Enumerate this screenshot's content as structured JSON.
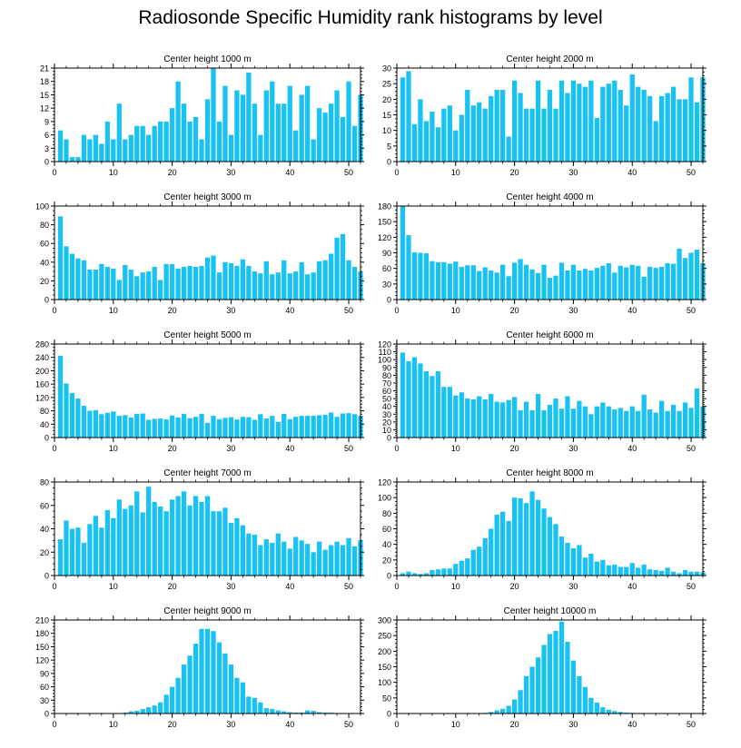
{
  "title": "Radiosonde Specific Humidity rank histograms by level",
  "colors": {
    "bar": "#18C2F2",
    "axis": "#000000",
    "background": "#ffffff"
  },
  "chart_data": [
    {
      "type": "bar",
      "title": "Center height 1000 m",
      "x_ticks": [
        0,
        10,
        20,
        30,
        40,
        50
      ],
      "xlim": [
        0,
        52
      ],
      "ylim": [
        0,
        21
      ],
      "y_ticks": [
        0,
        3,
        6,
        9,
        12,
        15,
        18,
        21
      ],
      "values": [
        7,
        5,
        1,
        1,
        6,
        5,
        6,
        4,
        9,
        5,
        13,
        5,
        6,
        8,
        8,
        6,
        8,
        9,
        9,
        12,
        18,
        13,
        9,
        10,
        5,
        14,
        21,
        9,
        17,
        6,
        16,
        15,
        20,
        13,
        6,
        16,
        18,
        13,
        13,
        17,
        7,
        15,
        17,
        5,
        12,
        11,
        13,
        16,
        10,
        18,
        8,
        15
      ]
    },
    {
      "type": "bar",
      "title": "Center height 2000 m",
      "x_ticks": [
        0,
        10,
        20,
        30,
        40,
        50
      ],
      "xlim": [
        0,
        52
      ],
      "ylim": [
        0,
        30
      ],
      "y_ticks": [
        0,
        5,
        10,
        15,
        20,
        25,
        30
      ],
      "values": [
        27,
        29,
        12,
        20,
        13,
        16,
        11,
        17,
        18,
        10,
        15,
        23,
        18,
        19,
        17,
        21,
        23,
        23,
        8,
        26,
        22,
        17,
        17,
        26,
        17,
        23,
        17,
        26,
        22,
        26,
        25,
        24,
        26,
        14,
        24,
        25,
        26,
        23,
        18,
        28,
        24,
        23,
        21,
        13,
        21,
        22,
        24,
        20,
        20,
        27,
        19,
        27
      ]
    },
    {
      "type": "bar",
      "title": "Center height 3000 m",
      "x_ticks": [
        0,
        10,
        20,
        30,
        40,
        50
      ],
      "xlim": [
        0,
        52
      ],
      "ylim": [
        0,
        100
      ],
      "y_ticks": [
        0,
        20,
        40,
        60,
        80,
        100
      ],
      "values": [
        89,
        57,
        49,
        44,
        42,
        32,
        32,
        38,
        35,
        33,
        21,
        37,
        32,
        25,
        29,
        30,
        35,
        21,
        38,
        38,
        33,
        35,
        36,
        35,
        36,
        45,
        47,
        29,
        40,
        39,
        36,
        43,
        36,
        30,
        28,
        41,
        27,
        29,
        42,
        28,
        30,
        40,
        27,
        29,
        41,
        42,
        49,
        66,
        70,
        42,
        35,
        30
      ]
    },
    {
      "type": "bar",
      "title": "Center height 4000 m",
      "x_ticks": [
        0,
        10,
        20,
        30,
        40,
        50
      ],
      "xlim": [
        0,
        52
      ],
      "ylim": [
        0,
        180
      ],
      "y_ticks": [
        0,
        30,
        60,
        90,
        120,
        150,
        180
      ],
      "values": [
        180,
        124,
        91,
        90,
        89,
        74,
        72,
        72,
        69,
        73,
        63,
        66,
        66,
        55,
        62,
        56,
        52,
        67,
        45,
        71,
        78,
        67,
        58,
        51,
        67,
        42,
        46,
        71,
        56,
        67,
        56,
        59,
        56,
        61,
        65,
        70,
        52,
        65,
        62,
        67,
        65,
        44,
        63,
        61,
        63,
        70,
        69,
        98,
        80,
        90,
        96,
        70
      ]
    },
    {
      "type": "bar",
      "title": "Center height 5000 m",
      "x_ticks": [
        0,
        10,
        20,
        30,
        40,
        50
      ],
      "xlim": [
        0,
        52
      ],
      "ylim": [
        0,
        280
      ],
      "y_ticks": [
        0,
        40,
        80,
        120,
        160,
        200,
        240,
        280
      ],
      "values": [
        245,
        162,
        133,
        117,
        95,
        80,
        82,
        70,
        74,
        78,
        65,
        67,
        60,
        71,
        72,
        53,
        56,
        57,
        54,
        66,
        60,
        71,
        58,
        62,
        71,
        44,
        65,
        55,
        59,
        61,
        54,
        62,
        61,
        53,
        70,
        57,
        65,
        47,
        71,
        55,
        62,
        65,
        65,
        65,
        67,
        68,
        75,
        62,
        72,
        73,
        70,
        65
      ]
    },
    {
      "type": "bar",
      "title": "Center height 6000 m",
      "x_ticks": [
        0,
        10,
        20,
        30,
        40,
        50
      ],
      "xlim": [
        0,
        52
      ],
      "ylim": [
        0,
        120
      ],
      "y_ticks": [
        0,
        10,
        20,
        30,
        40,
        50,
        60,
        70,
        80,
        90,
        100,
        110,
        120
      ],
      "values": [
        109,
        98,
        103,
        95,
        85,
        79,
        85,
        65,
        65,
        54,
        58,
        50,
        49,
        53,
        49,
        56,
        46,
        45,
        48,
        52,
        35,
        46,
        35,
        56,
        35,
        42,
        50,
        37,
        53,
        37,
        47,
        40,
        30,
        40,
        45,
        40,
        36,
        38,
        34,
        40,
        34,
        55,
        36,
        32,
        47,
        34,
        42,
        34,
        45,
        38,
        63,
        40
      ]
    },
    {
      "type": "bar",
      "title": "Center height 7000 m",
      "x_ticks": [
        0,
        10,
        20,
        30,
        40,
        50
      ],
      "xlim": [
        0,
        52
      ],
      "ylim": [
        0,
        80
      ],
      "y_ticks": [
        0,
        20,
        40,
        60,
        80
      ],
      "values": [
        31,
        47,
        40,
        41,
        28,
        44,
        51,
        41,
        56,
        49,
        65,
        57,
        60,
        72,
        54,
        76,
        63,
        59,
        55,
        65,
        68,
        72,
        60,
        68,
        63,
        68,
        55,
        55,
        58,
        45,
        49,
        43,
        36,
        35,
        26,
        31,
        28,
        36,
        29,
        23,
        33,
        30,
        27,
        20,
        29,
        22,
        26,
        29,
        26,
        32,
        25,
        30
      ]
    },
    {
      "type": "bar",
      "title": "Center height 8000 m",
      "x_ticks": [
        0,
        10,
        20,
        30,
        40,
        50
      ],
      "xlim": [
        0,
        52
      ],
      "ylim": [
        0,
        120
      ],
      "y_ticks": [
        0,
        20,
        40,
        60,
        80,
        100,
        120
      ],
      "values": [
        3,
        5,
        3,
        2,
        3,
        7,
        8,
        9,
        9,
        15,
        19,
        22,
        33,
        37,
        48,
        60,
        78,
        82,
        70,
        100,
        99,
        93,
        108,
        97,
        86,
        75,
        66,
        50,
        42,
        35,
        39,
        23,
        28,
        18,
        20,
        13,
        14,
        11,
        11,
        16,
        10,
        14,
        8,
        7,
        6,
        10,
        5,
        3,
        7,
        5,
        5,
        4
      ]
    },
    {
      "type": "bar",
      "title": "Center height 9000 m",
      "x_ticks": [
        0,
        10,
        20,
        30,
        40,
        50
      ],
      "xlim": [
        0,
        52
      ],
      "ylim": [
        0,
        210
      ],
      "y_ticks": [
        0,
        30,
        60,
        90,
        120,
        150,
        180,
        210
      ],
      "values": [
        0,
        0,
        0,
        0,
        0,
        0,
        0,
        0,
        0,
        0,
        1,
        2,
        5,
        6,
        10,
        14,
        18,
        25,
        42,
        60,
        80,
        110,
        130,
        157,
        190,
        190,
        185,
        160,
        135,
        110,
        80,
        70,
        38,
        35,
        25,
        12,
        10,
        7,
        5,
        3,
        2,
        2,
        7,
        6,
        3,
        2,
        2,
        1,
        1,
        1,
        0,
        0
      ]
    },
    {
      "type": "bar",
      "title": "Center height 10000 m",
      "x_ticks": [
        0,
        10,
        20,
        30,
        40,
        50
      ],
      "xlim": [
        0,
        52
      ],
      "ylim": [
        0,
        300
      ],
      "y_ticks": [
        0,
        50,
        100,
        150,
        200,
        250,
        300
      ],
      "values": [
        0,
        0,
        0,
        0,
        0,
        0,
        0,
        0,
        0,
        0,
        0,
        0,
        0,
        0,
        2,
        5,
        10,
        15,
        25,
        45,
        75,
        120,
        150,
        180,
        220,
        255,
        265,
        295,
        230,
        170,
        120,
        85,
        50,
        35,
        20,
        12,
        8,
        5,
        3,
        2,
        1,
        1,
        0,
        0,
        0,
        0,
        0,
        0,
        0,
        0,
        0,
        0
      ]
    }
  ]
}
